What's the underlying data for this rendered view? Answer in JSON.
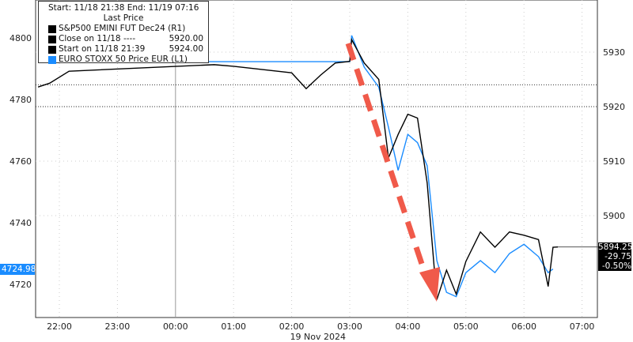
{
  "legend": {
    "range": "Start: 11/18 21:38 End: 11/19 07:16",
    "heading": "Last Price",
    "items": [
      {
        "label": "S&P500 EMINI FUT Dec24  (R1)",
        "value": "",
        "color": "#000000"
      },
      {
        "label": "Close on 11/18 ----",
        "value": "5920.00",
        "color": "#000000"
      },
      {
        "label": "Start on 11/18 21:39",
        "value": "5924.00",
        "color": "#000000"
      },
      {
        "label": "EURO STOXX 50 Price EUR  (L1)",
        "value": "",
        "color": "#1a8cff"
      }
    ]
  },
  "last_tags": {
    "left": "4724.98",
    "right": [
      "5894.25",
      "-29.75",
      "-0.50%"
    ]
  },
  "chart_data": {
    "type": "line",
    "xlabel": "19 Nov 2024",
    "x_ticks": [
      "22:00",
      "23:00",
      "00:00",
      "01:00",
      "02:00",
      "03:00",
      "04:00",
      "05:00",
      "06:00",
      "07:00"
    ],
    "y_left": {
      "ticks": [
        4720,
        4740,
        4760,
        4780,
        4800
      ],
      "range": [
        4705,
        4812
      ]
    },
    "y_right": {
      "ticks": [
        5900,
        5910,
        5920,
        5930
      ],
      "range": [
        5882,
        5936
      ]
    },
    "reference_lines_right": [
      5924,
      5920
    ],
    "series": [
      {
        "name": "S&P500 EMINI FUT Dec24",
        "axis": "right",
        "color": "#000000",
        "points": [
          [
            "21:38",
            5923.6
          ],
          [
            "21:50",
            5924.3
          ],
          [
            "22:10",
            5926.5
          ],
          [
            "00:40",
            5927.7
          ],
          [
            "01:00",
            5927.4
          ],
          [
            "01:30",
            5926.8
          ],
          [
            "02:00",
            5926.2
          ],
          [
            "02:15",
            5923.3
          ],
          [
            "02:30",
            5925.8
          ],
          [
            "02:45",
            5928
          ],
          [
            "03:00",
            5928.3
          ],
          [
            "03:02",
            5932.3
          ],
          [
            "03:15",
            5928
          ],
          [
            "03:30",
            5925
          ],
          [
            "03:40",
            5910.6
          ],
          [
            "03:50",
            5914.9
          ],
          [
            "04:00",
            5918.6
          ],
          [
            "04:10",
            5917.9
          ],
          [
            "04:20",
            5906
          ],
          [
            "04:30",
            5884.6
          ],
          [
            "04:40",
            5890
          ],
          [
            "04:50",
            5885.6
          ],
          [
            "05:00",
            5891.6
          ],
          [
            "05:15",
            5897
          ],
          [
            "05:30",
            5894.2
          ],
          [
            "05:45",
            5897
          ],
          [
            "06:00",
            5896.4
          ],
          [
            "06:15",
            5895.6
          ],
          [
            "06:25",
            5887
          ],
          [
            "06:30",
            5894.2
          ],
          [
            "06:35",
            5894.25
          ]
        ]
      },
      {
        "name": "EURO STOXX 50 Price EUR",
        "axis": "left",
        "color": "#1a8cff",
        "points": [
          [
            "22:10",
            4792.3
          ],
          [
            "03:00",
            4792.3
          ],
          [
            "03:02",
            4800.8
          ],
          [
            "03:15",
            4790.5
          ],
          [
            "03:30",
            4784
          ],
          [
            "03:40",
            4771
          ],
          [
            "03:50",
            4757
          ],
          [
            "04:00",
            4768.7
          ],
          [
            "04:10",
            4766
          ],
          [
            "04:20",
            4758.5
          ],
          [
            "04:30",
            4727.7
          ],
          [
            "04:40",
            4717.4
          ],
          [
            "04:50",
            4716
          ],
          [
            "05:00",
            4723.8
          ],
          [
            "05:15",
            4727.7
          ],
          [
            "05:30",
            4723.8
          ],
          [
            "05:45",
            4730
          ],
          [
            "06:00",
            4733
          ],
          [
            "06:15",
            4729
          ],
          [
            "06:25",
            4723.8
          ],
          [
            "06:30",
            4724.98
          ]
        ]
      }
    ],
    "annotation": "red dashed arrow pointing down from 03:00 peak to 04:30 low"
  }
}
